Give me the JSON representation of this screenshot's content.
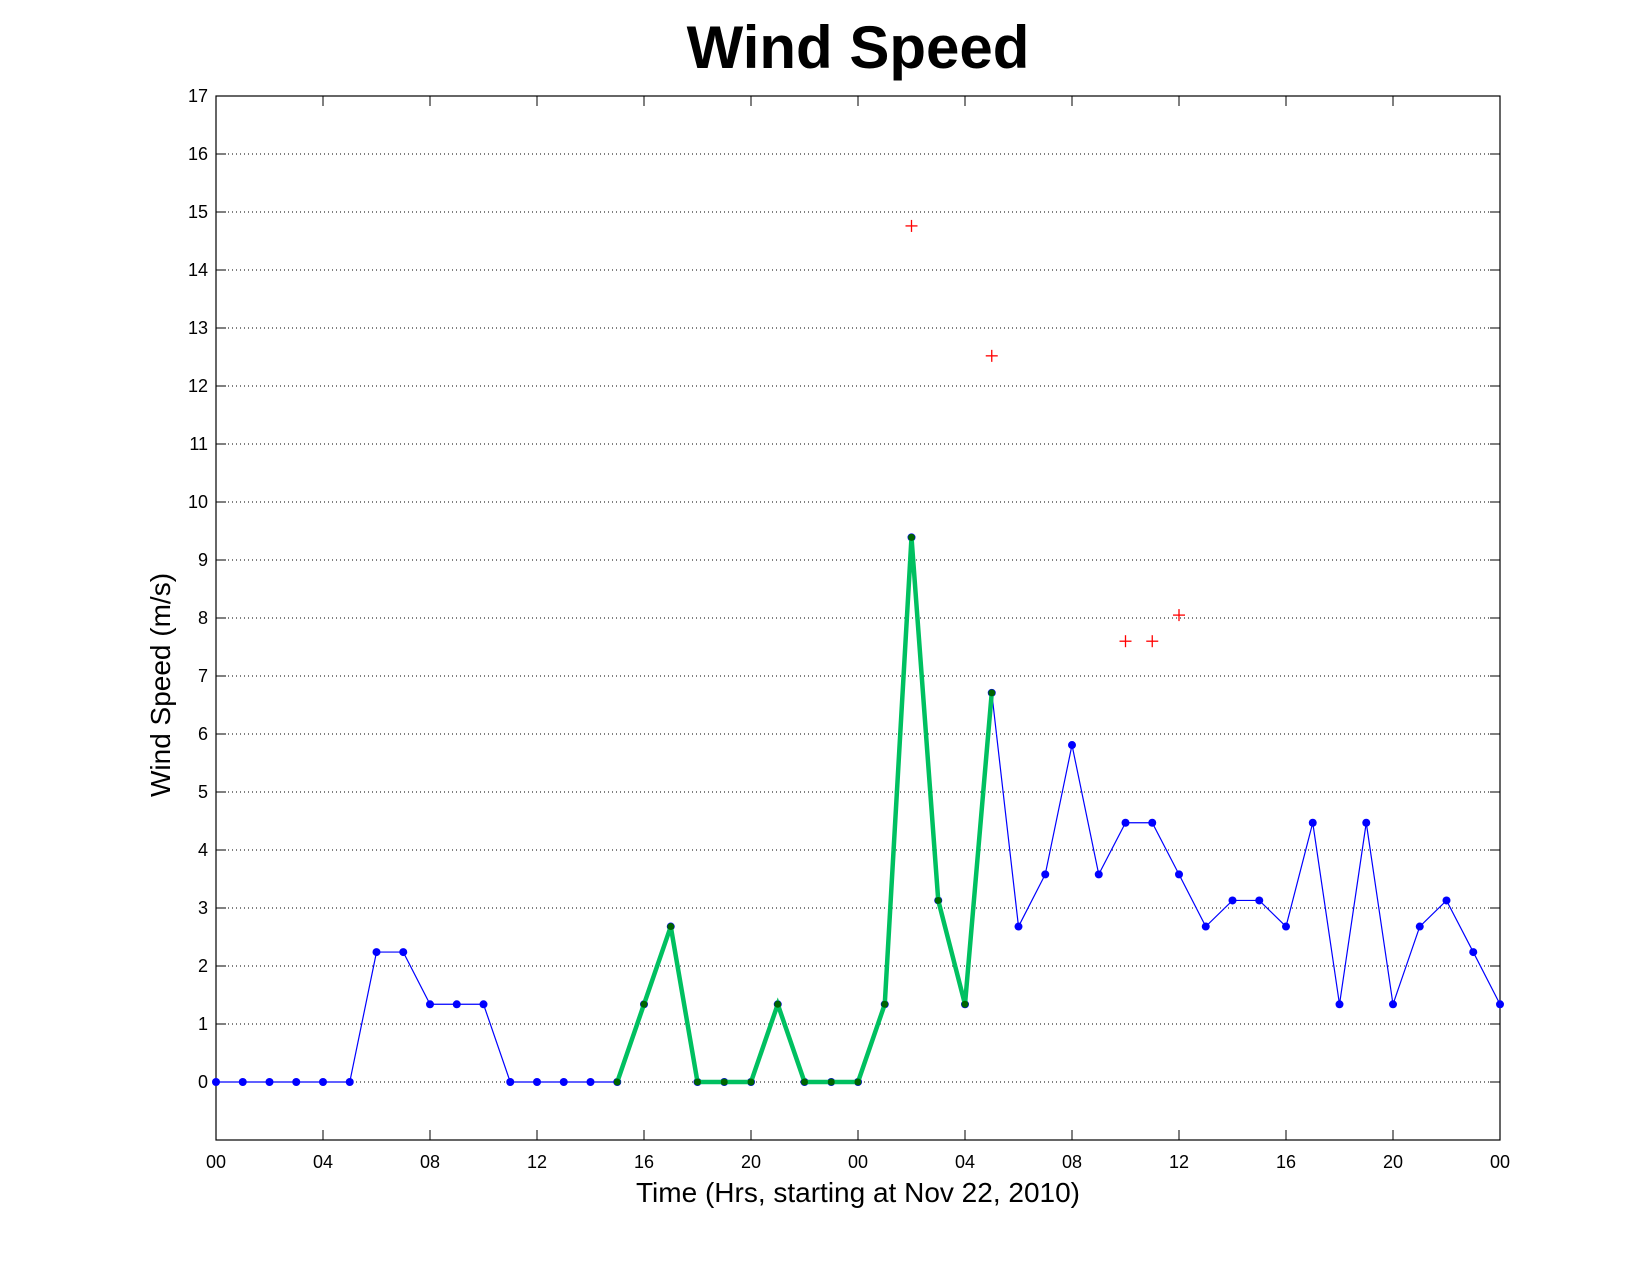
{
  "chart_data": {
    "type": "line",
    "title": "Wind Speed",
    "xlabel": "Time (Hrs, starting at Nov 22, 2010)",
    "ylabel": "Wind Speed (m/s)",
    "xlim": [
      0,
      48
    ],
    "ylim": [
      -1,
      17
    ],
    "x_ticks": [
      0,
      4,
      8,
      12,
      16,
      20,
      24,
      28,
      32,
      36,
      40,
      44,
      48
    ],
    "x_tick_labels": [
      "00",
      "04",
      "08",
      "12",
      "16",
      "20",
      "00",
      "04",
      "08",
      "12",
      "16",
      "20",
      "00"
    ],
    "y_ticks": [
      0,
      1,
      2,
      3,
      4,
      5,
      6,
      7,
      8,
      9,
      10,
      11,
      12,
      13,
      14,
      15,
      16,
      17
    ],
    "y_tick_labels": [
      "0",
      "1",
      "2",
      "3",
      "4",
      "5",
      "6",
      "7",
      "8",
      "9",
      "10",
      "11",
      "12",
      "13",
      "14",
      "15",
      "16",
      "17"
    ],
    "grid": "horizontal dotted",
    "series": [
      {
        "style": "blue line with dot markers",
        "color": "#0000ff",
        "x": [
          0,
          1,
          2,
          3,
          4,
          5,
          6,
          7,
          8,
          9,
          10,
          11,
          12,
          13,
          14,
          15,
          16,
          17,
          18,
          19,
          20,
          21,
          22,
          23,
          24,
          25,
          26,
          27,
          28,
          29,
          30,
          31,
          32,
          33,
          34,
          35,
          36,
          37,
          38,
          39,
          40,
          41,
          42,
          43,
          44,
          45,
          46,
          47,
          48
        ],
        "y": [
          0,
          0,
          0,
          0,
          0,
          0,
          2.24,
          2.24,
          1.34,
          1.34,
          1.34,
          0,
          0,
          0,
          0,
          0,
          1.34,
          2.68,
          0,
          0,
          0,
          1.34,
          0,
          0,
          0,
          1.34,
          9.39,
          3.13,
          1.34,
          6.71,
          2.68,
          3.58,
          5.81,
          3.58,
          4.47,
          4.47,
          3.58,
          2.68,
          3.13,
          3.13,
          2.68,
          4.47,
          1.34,
          4.47,
          1.34,
          2.68,
          3.13,
          2.24,
          1.34
        ]
      },
      {
        "style": "thick green line with dark green dot markers",
        "color": "#00c060",
        "marker_color": "#006400",
        "x": [
          15,
          16,
          17,
          18,
          19,
          20,
          21,
          22,
          23,
          24,
          25,
          26,
          27,
          28,
          29
        ],
        "y": [
          0,
          1.34,
          2.68,
          0,
          0,
          0,
          1.34,
          0,
          0,
          0,
          1.34,
          9.39,
          3.13,
          1.34,
          6.71
        ]
      },
      {
        "style": "red plus markers",
        "color": "#ff0000",
        "x": [
          26,
          29,
          34,
          35,
          36
        ],
        "y": [
          14.76,
          12.52,
          7.6,
          7.6,
          8.05
        ]
      }
    ]
  }
}
